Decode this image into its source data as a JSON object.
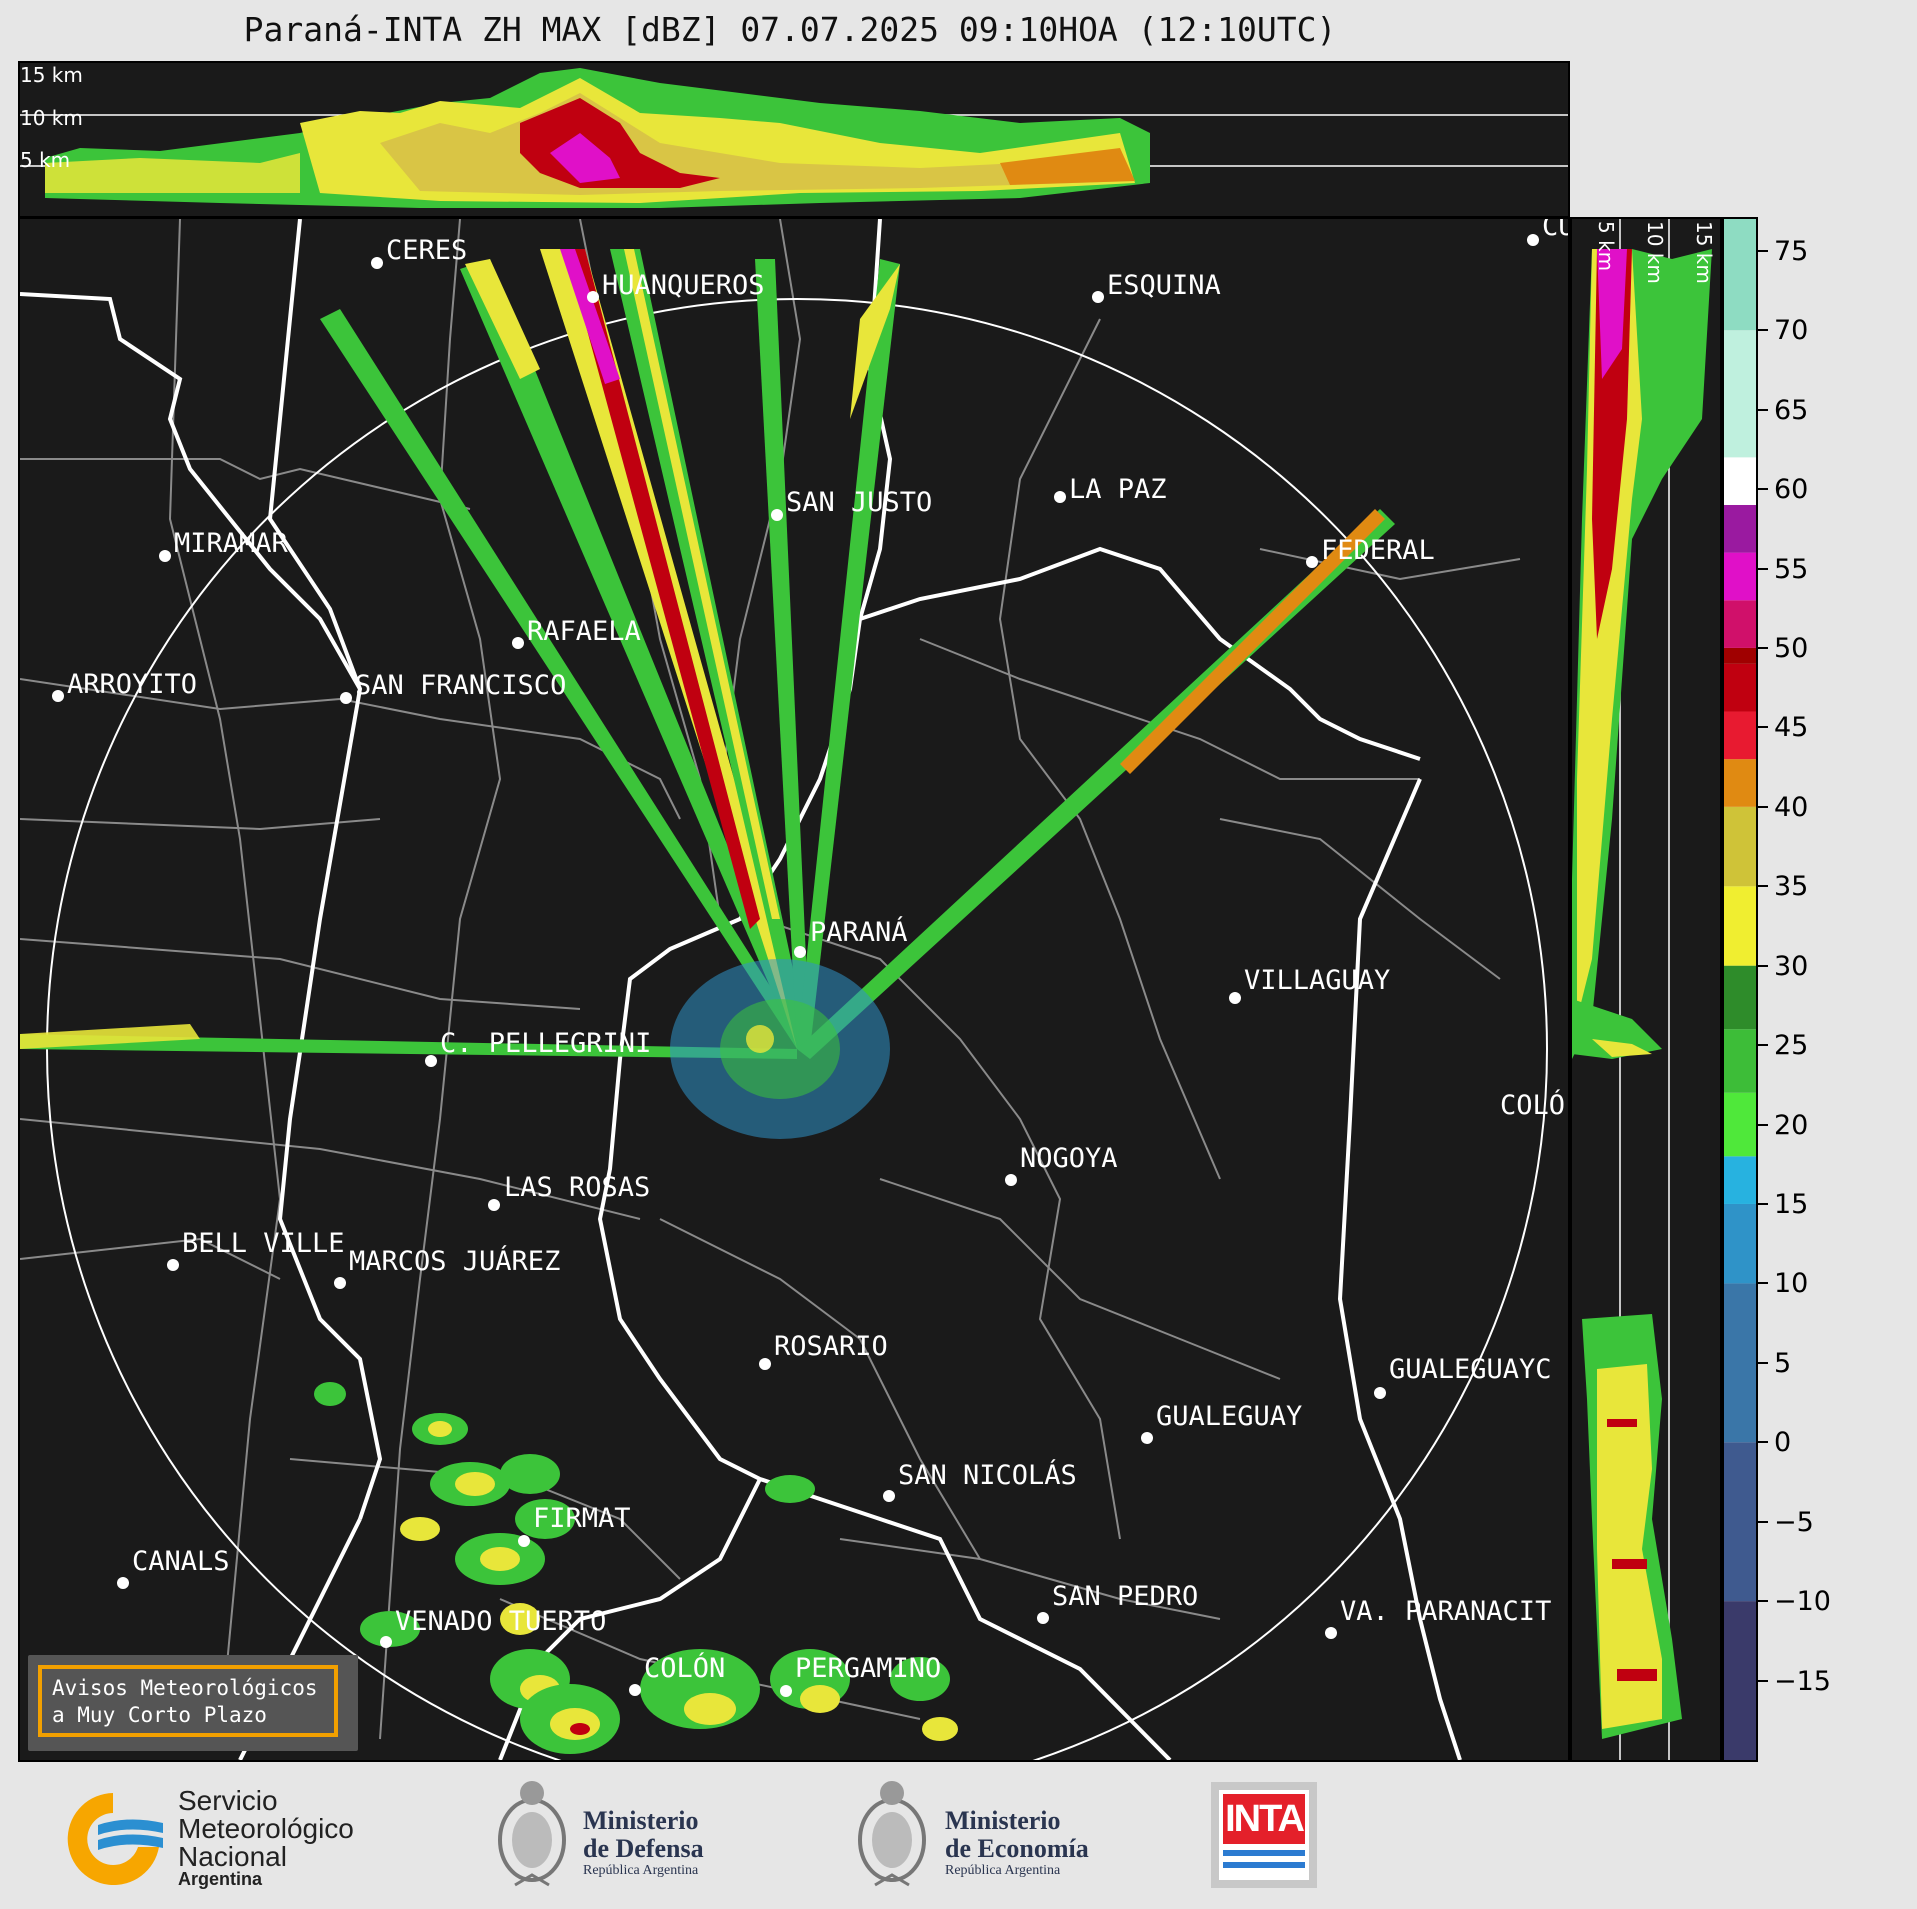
{
  "title": "Paraná-INTA ZH MAX [dBZ] 07.07.2025 09:10HOA (12:10UTC)",
  "top_panel": {
    "levels": [
      "15 km",
      "10 km",
      "5 km"
    ]
  },
  "side_panel": {
    "levels": [
      "5 km",
      "10 km",
      "15 km"
    ]
  },
  "cities": [
    {
      "name": "CERES"
    },
    {
      "name": "HUANQUEROS"
    },
    {
      "name": "ESQUINA"
    },
    {
      "name": "CU"
    },
    {
      "name": "SAN JUSTO"
    },
    {
      "name": "LA PAZ"
    },
    {
      "name": "MIRAMAR"
    },
    {
      "name": "FEDERAL"
    },
    {
      "name": "RAFAELA"
    },
    {
      "name": "ARROYITO"
    },
    {
      "name": "SAN FRANCISCO"
    },
    {
      "name": "PARANÁ"
    },
    {
      "name": "VILLAGUAY"
    },
    {
      "name": "C. PELLEGRINI"
    },
    {
      "name": "COLÓ"
    },
    {
      "name": "NOGOYA"
    },
    {
      "name": "LAS ROSAS"
    },
    {
      "name": "BELL VILLE"
    },
    {
      "name": "MARCOS JUÁREZ"
    },
    {
      "name": "ROSARIO"
    },
    {
      "name": "GUALEGUAYC"
    },
    {
      "name": "GUALEGUAY"
    },
    {
      "name": "SAN NICOLÁS"
    },
    {
      "name": "FIRMAT"
    },
    {
      "name": "CANALS"
    },
    {
      "name": "SAN PEDRO"
    },
    {
      "name": "VENADO TUERTO"
    },
    {
      "name": "VA. PARANACIT"
    },
    {
      "name": "COLÓN"
    },
    {
      "name": "PERGAMINO"
    }
  ],
  "colorbar": {
    "ticks": [
      "75",
      "70",
      "65",
      "60",
      "55",
      "50",
      "45",
      "40",
      "35",
      "30",
      "25",
      "20",
      "15",
      "10",
      "5",
      "0",
      "−5",
      "−10",
      "−15"
    ],
    "tick_values": [
      75,
      70,
      65,
      60,
      55,
      50,
      45,
      40,
      35,
      30,
      25,
      20,
      15,
      10,
      5,
      0,
      -5,
      -10,
      -15
    ],
    "range": [
      -20,
      77
    ],
    "colors": {
      "-20": "#3a3a6a",
      "-10": "#3f5a8f",
      "0": "#3a76a8",
      "10": "#2f93c8",
      "15": "#27b2e0",
      "18": "#4fe83a",
      "22": "#3dbd38",
      "26": "#2e8c2a",
      "30": "#f0ee30",
      "35": "#cfc338",
      "40": "#e08a12",
      "43": "#e81a30",
      "46": "#c00010",
      "49": "#a00000",
      "50": "#d0106a",
      "53": "#e010c8",
      "56": "#9a1aa0",
      "59": "#ffffff",
      "62": "#bff0de",
      "70": "#8edcc2"
    }
  },
  "notice": {
    "line1": "Avisos Meteorológicos",
    "line2": "a Muy Corto Plazo"
  },
  "logos": {
    "smn": {
      "line1": "Servicio",
      "line2": "Meteorológico",
      "line3": "Nacional",
      "line4": "Argentina"
    },
    "defensa": {
      "line1": "Ministerio",
      "line2": "de Defensa",
      "line3": "República Argentina"
    },
    "economia": {
      "line1": "Ministerio",
      "line2": "de Economía",
      "line3": "República Argentina"
    },
    "inta": {
      "text": "INTA"
    }
  }
}
